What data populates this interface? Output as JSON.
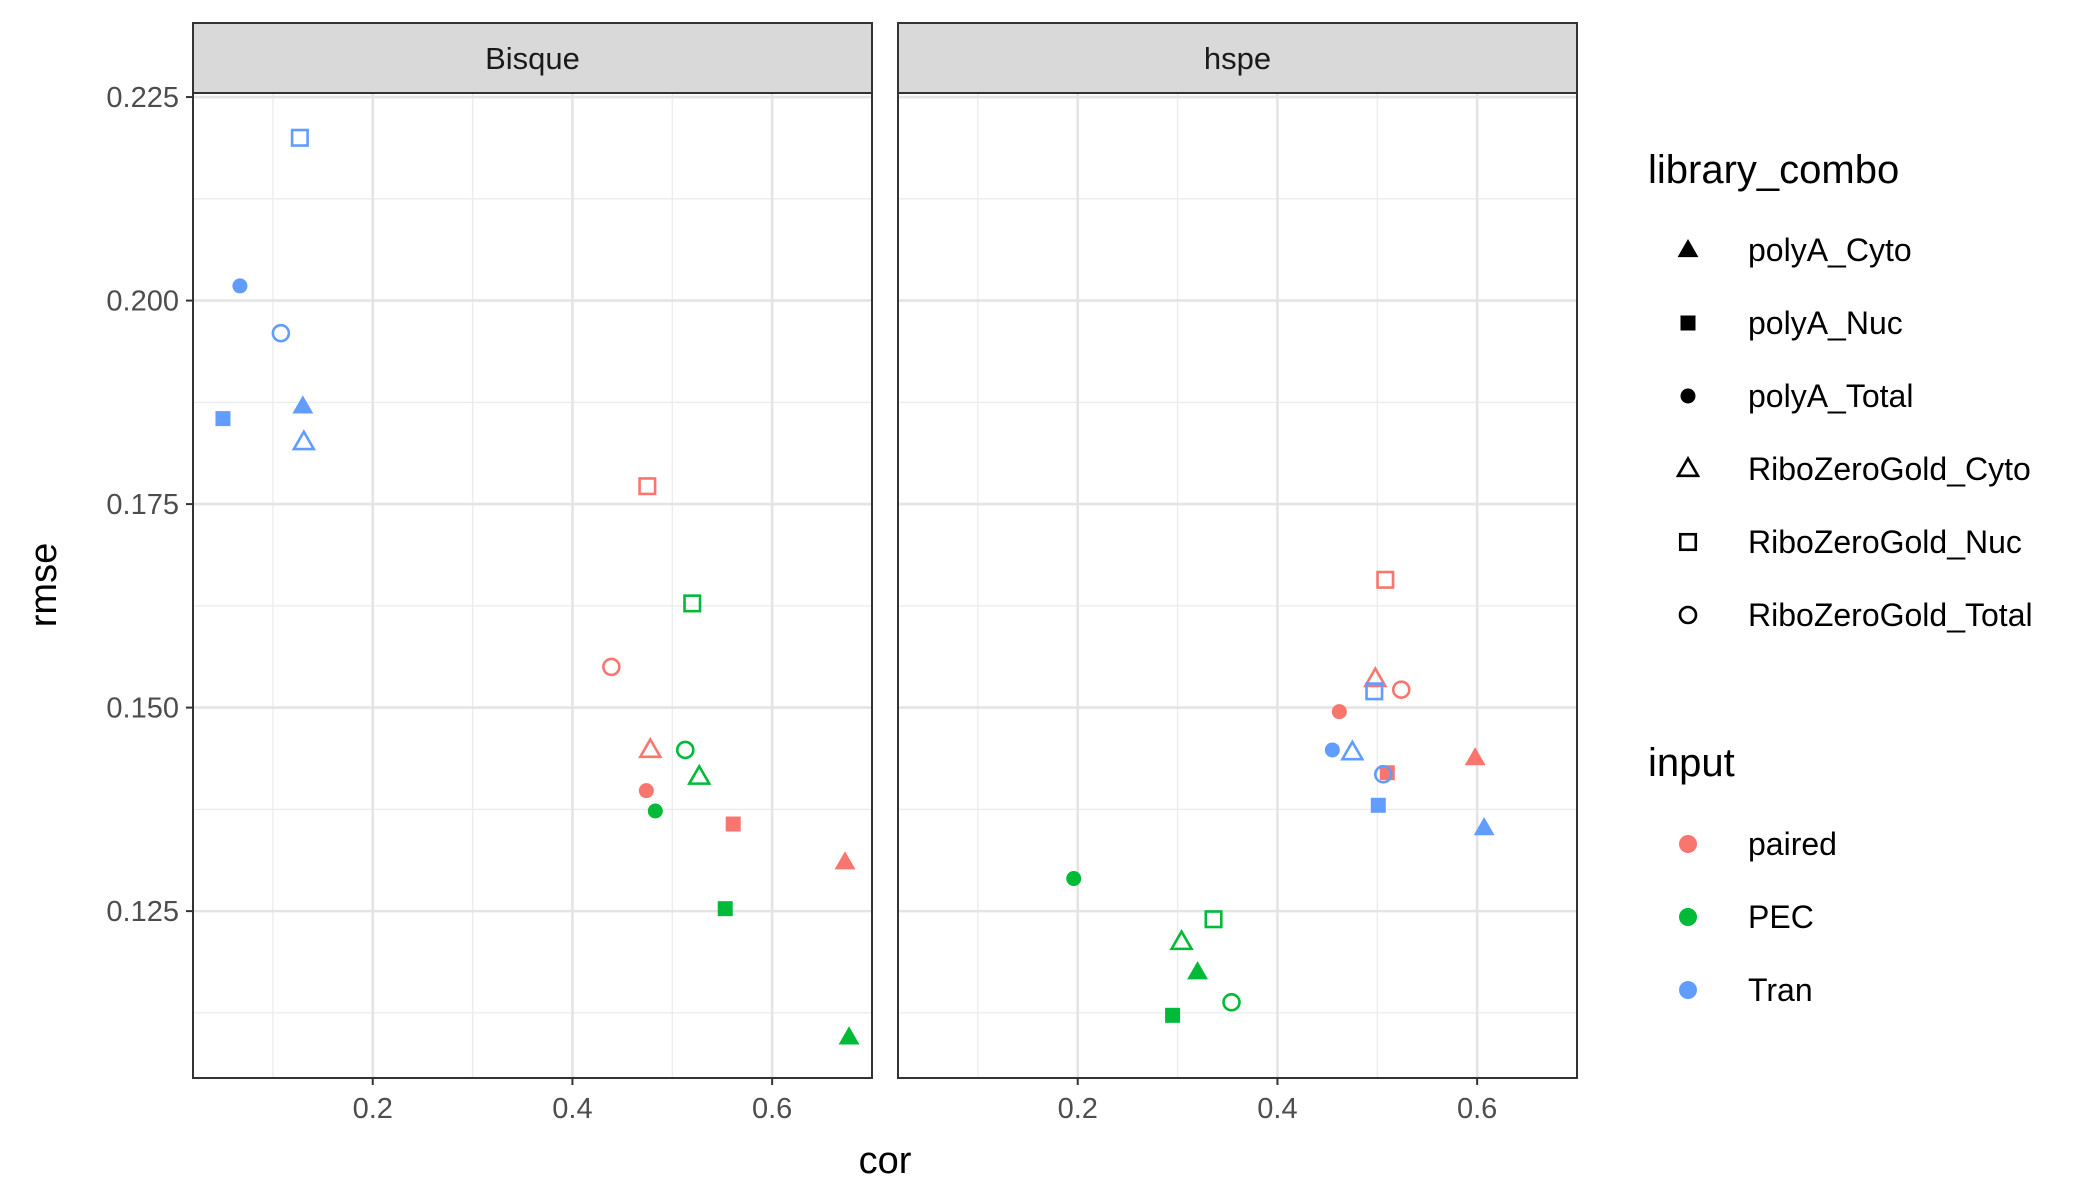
{
  "chart_data": {
    "type": "scatter",
    "facets": [
      "Bisque",
      "hspe"
    ],
    "xlabel": "cor",
    "ylabel": "rmse",
    "xlim": [
      0.02,
      0.7
    ],
    "ylim": [
      0.1045,
      0.2255
    ],
    "x_ticks": [
      0.2,
      0.4,
      0.6
    ],
    "x_tick_labels": [
      "0.2",
      "0.4",
      "0.6"
    ],
    "y_ticks": [
      0.125,
      0.15,
      0.175,
      0.2,
      0.225
    ],
    "y_tick_labels": [
      "0.125",
      "0.150",
      "0.175",
      "0.200",
      "0.225"
    ],
    "grid": true,
    "legend_position": "right",
    "legends": [
      {
        "title": "library_combo",
        "entries": [
          {
            "label": "polyA_Cyto",
            "shape": "triangle-filled"
          },
          {
            "label": "polyA_Nuc",
            "shape": "square-filled"
          },
          {
            "label": "polyA_Total",
            "shape": "circle-filled"
          },
          {
            "label": "RiboZeroGold_Cyto",
            "shape": "triangle-open"
          },
          {
            "label": "RiboZeroGold_Nuc",
            "shape": "square-open"
          },
          {
            "label": "RiboZeroGold_Total",
            "shape": "circle-open"
          }
        ]
      },
      {
        "title": "input",
        "entries": [
          {
            "label": "paired",
            "color": "#F8766D"
          },
          {
            "label": "PEC",
            "color": "#00BA38"
          },
          {
            "label": "Tran",
            "color": "#619CFF"
          }
        ]
      }
    ],
    "series": [
      {
        "facet": "Bisque",
        "input": "Tran",
        "library_combo": "RiboZeroGold_Nuc",
        "x": 0.127,
        "y": 0.22
      },
      {
        "facet": "Bisque",
        "input": "Tran",
        "library_combo": "polyA_Total",
        "x": 0.067,
        "y": 0.2018
      },
      {
        "facet": "Bisque",
        "input": "Tran",
        "library_combo": "RiboZeroGold_Total",
        "x": 0.108,
        "y": 0.196
      },
      {
        "facet": "Bisque",
        "input": "Tran",
        "library_combo": "polyA_Nuc",
        "x": 0.05,
        "y": 0.1855
      },
      {
        "facet": "Bisque",
        "input": "Tran",
        "library_combo": "polyA_Cyto",
        "x": 0.13,
        "y": 0.187
      },
      {
        "facet": "Bisque",
        "input": "Tran",
        "library_combo": "RiboZeroGold_Cyto",
        "x": 0.131,
        "y": 0.1826
      },
      {
        "facet": "Bisque",
        "input": "paired",
        "library_combo": "RiboZeroGold_Nuc",
        "x": 0.475,
        "y": 0.1772
      },
      {
        "facet": "Bisque",
        "input": "paired",
        "library_combo": "RiboZeroGold_Total",
        "x": 0.439,
        "y": 0.155
      },
      {
        "facet": "Bisque",
        "input": "paired",
        "library_combo": "RiboZeroGold_Cyto",
        "x": 0.478,
        "y": 0.1448
      },
      {
        "facet": "Bisque",
        "input": "paired",
        "library_combo": "polyA_Total",
        "x": 0.474,
        "y": 0.1398
      },
      {
        "facet": "Bisque",
        "input": "paired",
        "library_combo": "polyA_Nuc",
        "x": 0.561,
        "y": 0.1357
      },
      {
        "facet": "Bisque",
        "input": "paired",
        "library_combo": "polyA_Cyto",
        "x": 0.673,
        "y": 0.131
      },
      {
        "facet": "Bisque",
        "input": "PEC",
        "library_combo": "RiboZeroGold_Nuc",
        "x": 0.52,
        "y": 0.1628
      },
      {
        "facet": "Bisque",
        "input": "PEC",
        "library_combo": "RiboZeroGold_Total",
        "x": 0.513,
        "y": 0.1448
      },
      {
        "facet": "Bisque",
        "input": "PEC",
        "library_combo": "RiboZeroGold_Cyto",
        "x": 0.527,
        "y": 0.1415
      },
      {
        "facet": "Bisque",
        "input": "PEC",
        "library_combo": "polyA_Total",
        "x": 0.483,
        "y": 0.1373
      },
      {
        "facet": "Bisque",
        "input": "PEC",
        "library_combo": "polyA_Nuc",
        "x": 0.553,
        "y": 0.1253
      },
      {
        "facet": "Bisque",
        "input": "PEC",
        "library_combo": "polyA_Cyto",
        "x": 0.677,
        "y": 0.1095
      },
      {
        "facet": "hspe",
        "input": "paired",
        "library_combo": "RiboZeroGold_Nuc",
        "x": 0.508,
        "y": 0.1657
      },
      {
        "facet": "hspe",
        "input": "paired",
        "library_combo": "RiboZeroGold_Cyto",
        "x": 0.498,
        "y": 0.1535
      },
      {
        "facet": "hspe",
        "input": "paired",
        "library_combo": "RiboZeroGold_Total",
        "x": 0.524,
        "y": 0.1522
      },
      {
        "facet": "hspe",
        "input": "paired",
        "library_combo": "polyA_Total",
        "x": 0.462,
        "y": 0.1495
      },
      {
        "facet": "hspe",
        "input": "paired",
        "library_combo": "polyA_Nuc",
        "x": 0.51,
        "y": 0.142
      },
      {
        "facet": "hspe",
        "input": "paired",
        "library_combo": "polyA_Cyto",
        "x": 0.598,
        "y": 0.1438
      },
      {
        "facet": "hspe",
        "input": "Tran",
        "library_combo": "RiboZeroGold_Nuc",
        "x": 0.497,
        "y": 0.152
      },
      {
        "facet": "hspe",
        "input": "Tran",
        "library_combo": "polyA_Total",
        "x": 0.455,
        "y": 0.1448
      },
      {
        "facet": "hspe",
        "input": "Tran",
        "library_combo": "RiboZeroGold_Cyto",
        "x": 0.475,
        "y": 0.1445
      },
      {
        "facet": "hspe",
        "input": "Tran",
        "library_combo": "RiboZeroGold_Total",
        "x": 0.506,
        "y": 0.1418
      },
      {
        "facet": "hspe",
        "input": "Tran",
        "library_combo": "polyA_Nuc",
        "x": 0.501,
        "y": 0.138
      },
      {
        "facet": "hspe",
        "input": "Tran",
        "library_combo": "polyA_Cyto",
        "x": 0.607,
        "y": 0.1352
      },
      {
        "facet": "hspe",
        "input": "PEC",
        "library_combo": "polyA_Total",
        "x": 0.196,
        "y": 0.129
      },
      {
        "facet": "hspe",
        "input": "PEC",
        "library_combo": "RiboZeroGold_Nuc",
        "x": 0.336,
        "y": 0.124
      },
      {
        "facet": "hspe",
        "input": "PEC",
        "library_combo": "RiboZeroGold_Cyto",
        "x": 0.304,
        "y": 0.1212
      },
      {
        "facet": "hspe",
        "input": "PEC",
        "library_combo": "polyA_Cyto",
        "x": 0.32,
        "y": 0.1175
      },
      {
        "facet": "hspe",
        "input": "PEC",
        "library_combo": "RiboZeroGold_Total",
        "x": 0.354,
        "y": 0.1138
      },
      {
        "facet": "hspe",
        "input": "PEC",
        "library_combo": "polyA_Nuc",
        "x": 0.295,
        "y": 0.1122
      }
    ]
  }
}
